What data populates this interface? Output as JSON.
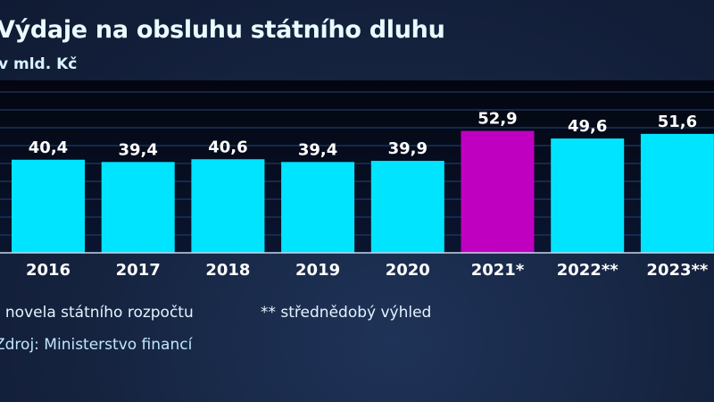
{
  "chart_data": {
    "type": "bar",
    "title": "Výdaje na obsluhu státního dluhu",
    "subtitle": "v mld. Kč",
    "categories": [
      "2016",
      "2017",
      "2018",
      "2019",
      "2020",
      "2021*",
      "2022**",
      "2023**"
    ],
    "values": [
      40.4,
      39.4,
      40.6,
      39.4,
      39.9,
      52.9,
      49.6,
      51.6
    ],
    "value_labels": [
      "40,4",
      "39,4",
      "40,6",
      "39,4",
      "39,9",
      "52,9",
      "49,6",
      "51,6"
    ],
    "highlight_index": 5,
    "ylim": [
      0,
      75
    ],
    "grid": true,
    "colors": {
      "bar": "#00e4ff",
      "highlight": "#c000c0",
      "label": "#ffffff"
    },
    "footnotes": [
      "* novela státního rozpočtu",
      "** střednědobý výhled"
    ],
    "source": "Zdroj: Ministerstvo financí"
  }
}
